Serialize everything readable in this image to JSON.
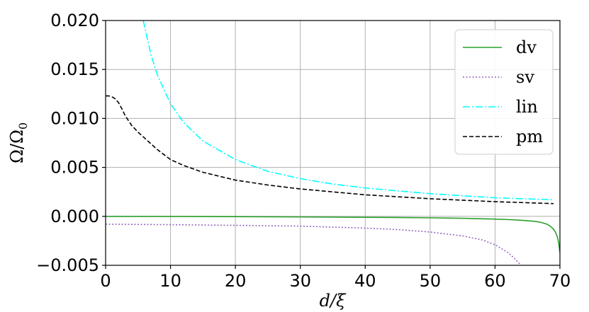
{
  "chart_data": {
    "type": "line",
    "title": "",
    "xlabel": "d/ξ",
    "ylabel": "Ω/Ω",
    "ylabel_subscript": "0",
    "xlim": [
      0,
      70
    ],
    "ylim": [
      -0.005,
      0.02
    ],
    "x_ticks": [
      0,
      10,
      20,
      30,
      40,
      50,
      60,
      70
    ],
    "x_tick_labels": [
      "0",
      "10",
      "20",
      "30",
      "40",
      "50",
      "60",
      "70"
    ],
    "y_ticks": [
      -0.005,
      0.0,
      0.005,
      0.01,
      0.015,
      0.02
    ],
    "y_tick_labels": [
      "−0.005",
      "0.000",
      "0.005",
      "0.010",
      "0.015",
      "0.020"
    ],
    "grid": true,
    "legend_position": "top-right",
    "series": [
      {
        "name": "dv",
        "color": "#2ca02c",
        "dash": "solid",
        "x": [
          0,
          10,
          20,
          30,
          40,
          45,
          50,
          55,
          60,
          62,
          64,
          65,
          66,
          67,
          68,
          68.5,
          69,
          69.3,
          69.6,
          69.8,
          70
        ],
        "y": [
          0.0,
          -1e-05,
          -3e-05,
          -6e-05,
          -0.0001,
          -0.00012,
          -0.00015,
          -0.0002,
          -0.00028,
          -0.00033,
          -0.0004,
          -0.00045,
          -0.0005,
          -0.0006,
          -0.0008,
          -0.001,
          -0.0013,
          -0.0016,
          -0.0021,
          -0.0027,
          -0.0037
        ]
      },
      {
        "name": "sv",
        "color": "#9467bd",
        "dash": "dotted",
        "x": [
          0,
          10,
          20,
          30,
          35,
          40,
          45,
          50,
          55,
          58,
          60,
          62,
          63,
          64
        ],
        "y": [
          -0.0008,
          -0.00085,
          -0.00092,
          -0.001,
          -0.0011,
          -0.0012,
          -0.00135,
          -0.0016,
          -0.002,
          -0.0024,
          -0.0029,
          -0.0037,
          -0.0043,
          -0.005
        ]
      },
      {
        "name": "lin",
        "color": "#00ffff",
        "dash": "dashdot",
        "x": [
          5.8,
          7,
          8,
          10,
          12,
          15,
          20,
          25,
          30,
          35,
          40,
          45,
          50,
          55,
          60,
          65,
          69
        ],
        "y": [
          0.02,
          0.0165,
          0.0144,
          0.0115,
          0.0096,
          0.0077,
          0.0058,
          0.0046,
          0.00385,
          0.0033,
          0.0029,
          0.0026,
          0.00232,
          0.0021,
          0.0019,
          0.00178,
          0.0017
        ]
      },
      {
        "name": "pm",
        "color": "#000000",
        "dash": "dashed",
        "x": [
          0,
          0.5,
          1,
          1.5,
          2,
          2.5,
          3,
          3.5,
          4,
          5,
          6,
          8,
          10,
          12,
          15,
          20,
          25,
          30,
          40,
          50,
          60,
          69
        ],
        "y": [
          0.0123,
          0.0123,
          0.0122,
          0.012,
          0.0116,
          0.011,
          0.0103,
          0.0098,
          0.0093,
          0.0086,
          0.008,
          0.0068,
          0.0058,
          0.0052,
          0.0045,
          0.0037,
          0.0032,
          0.0028,
          0.0022,
          0.0018,
          0.0015,
          0.0013
        ]
      }
    ]
  }
}
